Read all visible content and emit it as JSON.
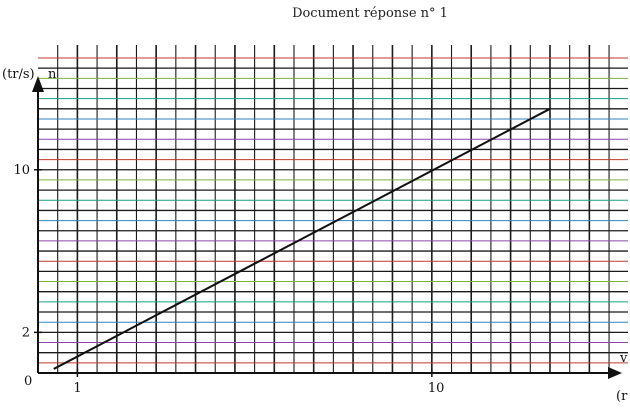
{
  "page": {
    "title": "Document réponse n° 1"
  },
  "chart_data": {
    "type": "line",
    "title": "Document réponse n° 1",
    "ylabel_unit": "(tr/s)",
    "ylabel": "n",
    "xlabel": "v",
    "xlabel_unit": "(r",
    "origin_label": "0",
    "xlim": [
      0,
      14.6
    ],
    "ylim": [
      0,
      15.5
    ],
    "x_tick_labels": [
      "1",
      "10"
    ],
    "x_tick_values": [
      1,
      10
    ],
    "y_tick_labels": [
      "2",
      "10"
    ],
    "y_tick_values": [
      2,
      10
    ],
    "grid": true,
    "series": [
      {
        "x": [
          0.4,
          13.0
        ],
        "y": [
          0.2,
          13.0
        ]
      }
    ],
    "grid_line_colors": [
      "#222222",
      "#c0392b",
      "#27ae60",
      "#8e44ad",
      "#d4a017",
      "#2e86c1",
      "#e67e22",
      "#16a085",
      "#c2185b",
      "#7cb342"
    ]
  }
}
